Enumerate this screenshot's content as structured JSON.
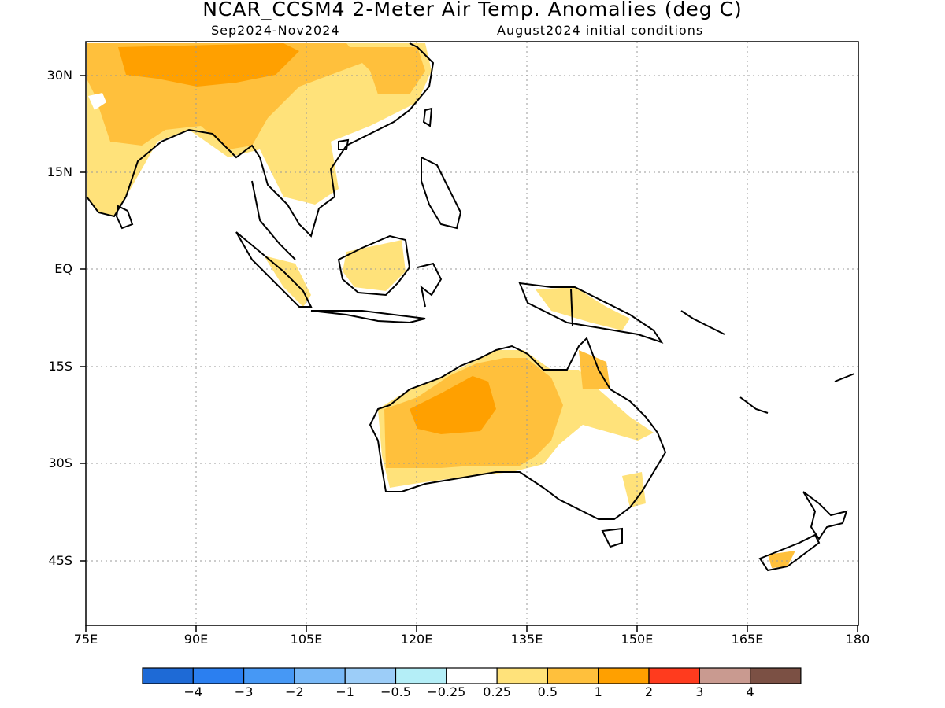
{
  "header": {
    "title": "NCAR_CCSM4 2-Meter Air Temp. Anomalies (deg C)",
    "period": "Sep2024-Nov2024",
    "init": "August2024 initial conditions"
  },
  "map": {
    "lat_labels": [
      "30N",
      "15N",
      "EQ",
      "15S",
      "30S",
      "45S"
    ],
    "lon_labels": [
      "75E",
      "90E",
      "105E",
      "120E",
      "135E",
      "150E",
      "165E",
      "180"
    ],
    "lat_range": [
      -55,
      35
    ],
    "lon_range": [
      75,
      180
    ],
    "gridlines": "dotted"
  },
  "colorbar": {
    "labels": [
      "-4",
      "-3",
      "-2",
      "-1",
      "-0.5",
      "-0.25",
      "0.25",
      "0.5",
      "1",
      "2",
      "3",
      "4"
    ],
    "colors": [
      "#1e6ad6",
      "#2b7ff0",
      "#4698f5",
      "#78b8f7",
      "#9ccdf8",
      "#b4eef7",
      "#ffffff",
      "#ffe27a",
      "#ffc03c",
      "#ffa000",
      "#ff3b1e",
      "#c99a90",
      "#7b5044"
    ]
  }
}
